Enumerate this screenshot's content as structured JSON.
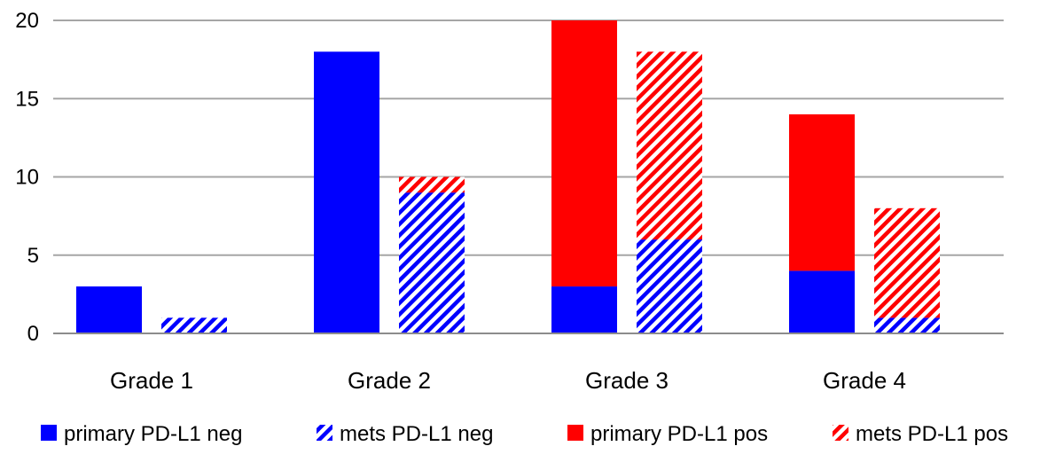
{
  "chart_data": {
    "type": "bar",
    "stacked": true,
    "categories": [
      "Grade 1",
      "Grade 2",
      "Grade 3",
      "Grade 4"
    ],
    "groups": [
      "primary",
      "mets"
    ],
    "series": [
      {
        "name": "primary PD-L1 neg",
        "group": "primary",
        "pattern": "solid",
        "color": "#0000ff",
        "values": [
          3,
          18,
          3,
          4
        ]
      },
      {
        "name": "mets PD-L1 neg",
        "group": "mets",
        "pattern": "diagonal",
        "color": "#0000ff",
        "values": [
          1,
          9,
          6,
          1
        ]
      },
      {
        "name": "primary PD-L1 pos",
        "group": "primary",
        "pattern": "solid",
        "color": "#ff0000",
        "values": [
          0,
          0,
          17,
          10
        ]
      },
      {
        "name": "mets PD-L1 pos",
        "group": "mets",
        "pattern": "diagonal",
        "color": "#ff0000",
        "values": [
          0,
          1,
          12,
          7
        ]
      }
    ],
    "ylim": [
      0,
      20
    ],
    "yticks": [
      0,
      5,
      10,
      15,
      20
    ],
    "grid": true,
    "legend_position": "bottom",
    "title": "",
    "xlabel": "",
    "ylabel": ""
  }
}
